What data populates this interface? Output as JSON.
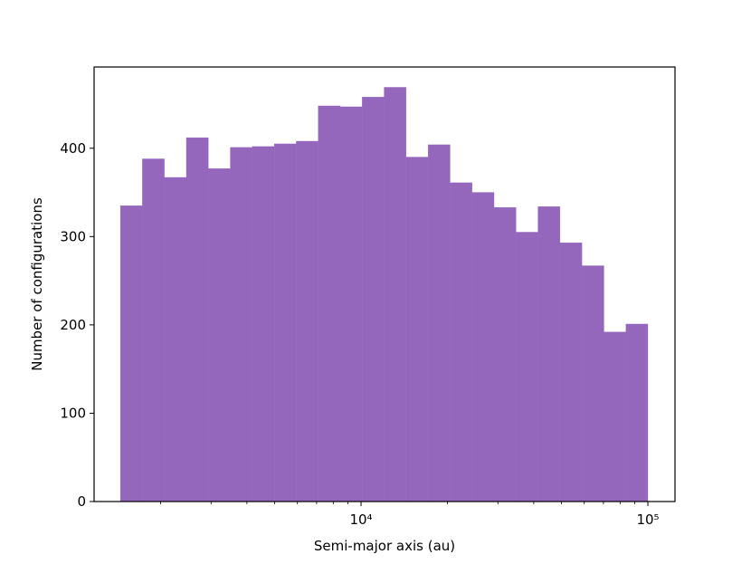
{
  "chart_data": {
    "type": "histogram",
    "xlabel": "Semi-major axis (au)",
    "ylabel": "Number of configurations",
    "bins": [
      1449,
      1728,
      2062,
      2460,
      2935,
      3501,
      4177,
      4983,
      5943,
      7089,
      8458,
      10090,
      12037,
      14360,
      17133,
      20438,
      24380,
      29088,
      34700,
      41395,
      49384,
      58915,
      70282,
      83837,
      100000
    ],
    "values": [
      335,
      388,
      367,
      412,
      377,
      401,
      402,
      405,
      408,
      448,
      447,
      458,
      469,
      390,
      404,
      361,
      350,
      333,
      305,
      334,
      293,
      267,
      192,
      201
    ],
    "color": "#9467bd",
    "xscale": "log",
    "xlim": [
      1173,
      124330
    ],
    "xticks": [
      {
        "value": 10000,
        "label": "10⁴"
      },
      {
        "value": 100000,
        "label": "10⁵"
      }
    ],
    "xminorticks": [
      2000,
      3000,
      4000,
      5000,
      6000,
      7000,
      8000,
      9000,
      20000,
      30000,
      40000,
      50000,
      60000,
      70000,
      80000,
      90000
    ],
    "ylim": [
      0,
      492
    ],
    "yticks": [
      0,
      100,
      200,
      300,
      400
    ]
  }
}
